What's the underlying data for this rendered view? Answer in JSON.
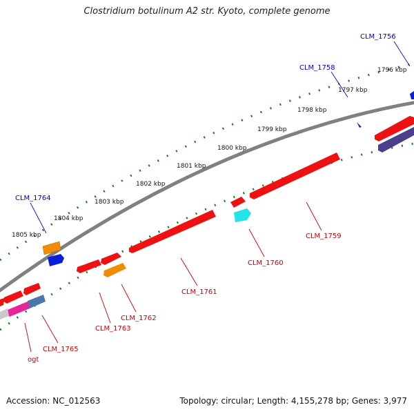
{
  "title": "Clostridium botulinum A2 str. Kyoto, complete genome",
  "footer": {
    "accession": "Accession: NC_012563",
    "summary": "Topology: circular; Length: 4,155,278 bp; Genes: 3,977"
  },
  "kbp_labels": [
    "1796 kbp",
    "1797 kbp",
    "1798 kbp",
    "1799 kbp",
    "1800 kbp",
    "1801 kbp",
    "1802 kbp",
    "1803 kbp",
    "1804 kbp",
    "1805 kbp"
  ],
  "genes_forward": [
    {
      "label": "CLM_1756",
      "color": "#0000cc"
    },
    {
      "label": "CLM_1758",
      "color": "#0000cc"
    },
    {
      "label": "CLM_1764",
      "color": "#0000cc"
    }
  ],
  "genes_reverse": [
    {
      "label": "CLM_1759",
      "color": "#cc0000"
    },
    {
      "label": "CLM_1760",
      "color": "#cc0000"
    },
    {
      "label": "CLM_1761",
      "color": "#cc0000"
    },
    {
      "label": "CLM_1762",
      "color": "#cc0000"
    },
    {
      "label": "CLM_1763",
      "color": "#cc0000"
    },
    {
      "label": "CLM_1765",
      "color": "#cc0000"
    },
    {
      "label": "ogt",
      "color": "#cc0000"
    }
  ],
  "colors": {
    "backbone": "#8a8a8a",
    "tick": "#1f7a1f",
    "gene_red": "#ee1111",
    "gene_orange": "#f08c00",
    "gene_blue": "#0a1fd8",
    "gene_cyan": "#22e4e8",
    "gene_magenta": "#e8249a",
    "gene_steel": "#4a78a8",
    "gene_navy": "#4a3f8a",
    "gene_grey": "#c8c8c8"
  }
}
